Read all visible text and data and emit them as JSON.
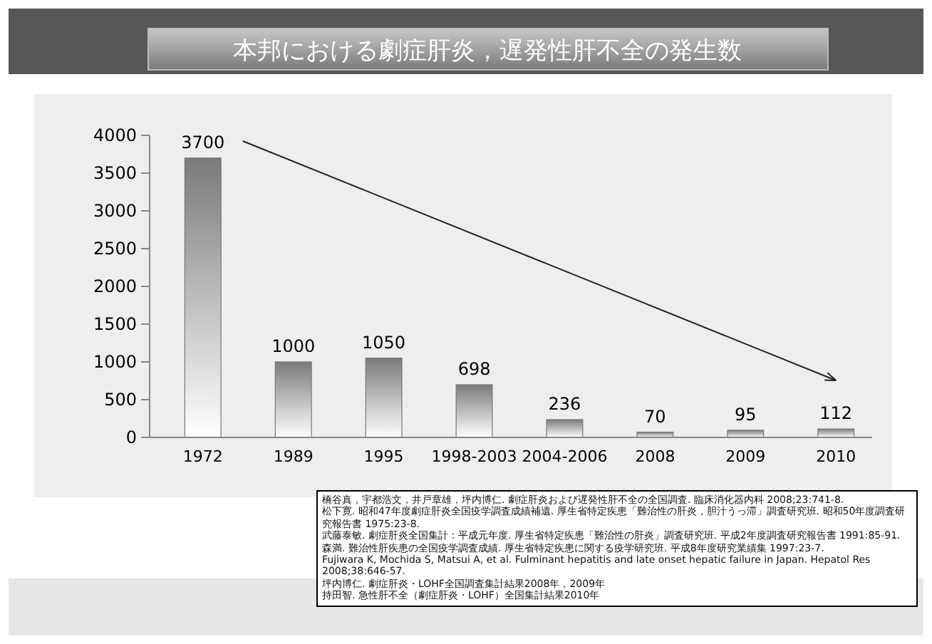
{
  "chart_data": {
    "type": "bar",
    "title": "本邦における劇症肝炎，遅発性肝不全の発生数",
    "categories": [
      "1972",
      "1989",
      "1995",
      "1998-2003",
      "2004-2006",
      "2008",
      "2009",
      "2010"
    ],
    "values": [
      3700,
      1000,
      1050,
      698,
      236,
      70,
      95,
      112
    ],
    "color": "#7a7a7a",
    "data_labels": true,
    "ylim": [
      0,
      4000
    ],
    "yticks": [
      0,
      500,
      1000,
      1500,
      2000,
      2500,
      3000,
      3500,
      4000
    ],
    "grid": false,
    "annotations": [
      "橋谷真，宇都浩文，井戸章雄，坪内博仁. 劇症肝炎および遅発性肝不全の全国調査. 臨床消化器内科 2008;23:741-8.",
      "松下寛. 昭和47年度劇症肝炎全国疫学調査成績補遺. 厚生省特定疾患「難治性の肝炎，胆汁うっ滞」調査研究班. 昭和50年度調査研究報告書 1975:23-8.",
      "武藤泰敏. 劇症肝炎全国集計：平成元年度. 厚生省特定疾患「難治性の肝炎」調査研究班. 平成2年度調査研究報告書 1991:85-91.",
      "森満. 難治性肝疾患の全国疫学調査成績. 厚生省特定疾患に関する疫学研究班. 平成8年度研究業績集 1997:23-7.",
      "Fujiwara K, Mochida S, Matsui A, et al. Fulminant hepatitis and late onset hepatic failure in Japan. Hepatol Res 2008;38:646-57.",
      "坪内博仁. 劇症肝炎・LOHF全国調査集計結果2008年，2009年",
      "持田智. 急性肝不全（劇症肝炎・LOHF）全国集計結果2010年"
    ]
  }
}
